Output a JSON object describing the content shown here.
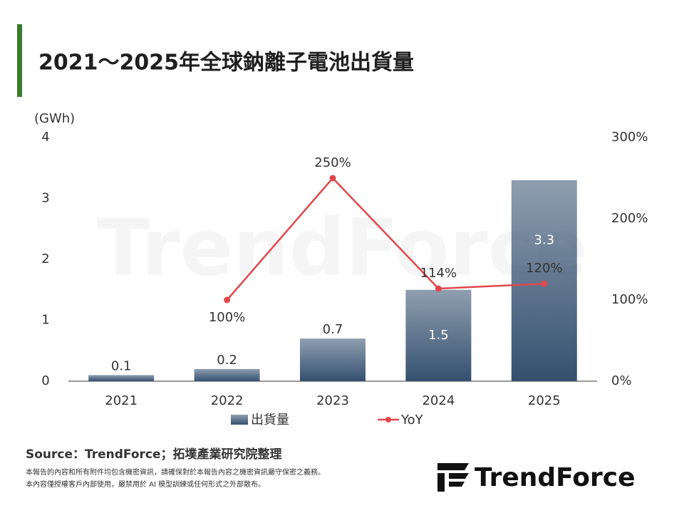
{
  "chart_data": {
    "type": "bar-line",
    "title": "2021～2025年全球鈉離子電池出貨量",
    "y_label": "(GWh)",
    "categories": [
      "2021",
      "2022",
      "2023",
      "2024",
      "2025"
    ],
    "series": [
      {
        "name": "出貨量",
        "color": "#34506f",
        "values": [
          0.1,
          0.2,
          0.7,
          1.5,
          3.3
        ]
      },
      {
        "name": "YoY",
        "color": "#e0474c",
        "axis": "y2",
        "values": [
          null,
          100,
          250,
          114,
          120
        ],
        "value_labels": [
          null,
          "100%",
          "250%",
          "114%",
          "120%"
        ]
      }
    ],
    "ylim": [
      0,
      4
    ],
    "yticks": [
      0,
      1,
      2,
      3,
      4
    ],
    "y2lim": [
      0,
      300
    ],
    "y2ticks": [
      {
        "value": 0,
        "label": "0%"
      },
      {
        "value": 100,
        "label": "100%"
      },
      {
        "value": 200,
        "label": "200%"
      },
      {
        "value": 300,
        "label": "300%"
      }
    ],
    "grid": false,
    "legend": "bottom",
    "watermark": "TrendForce",
    "source": "Source：TrendForce；拓墣產業研究院整理",
    "notes": [
      "本報告的內容和所有附件均包含機密資訊，請確保對於本報告內容之機密資訊嚴守保密之義務。",
      "本內容僅授權客戶內部使用，嚴禁用於 AI 模型訓練或任何形式之外部散布。"
    ],
    "logo": "TrendForce"
  }
}
